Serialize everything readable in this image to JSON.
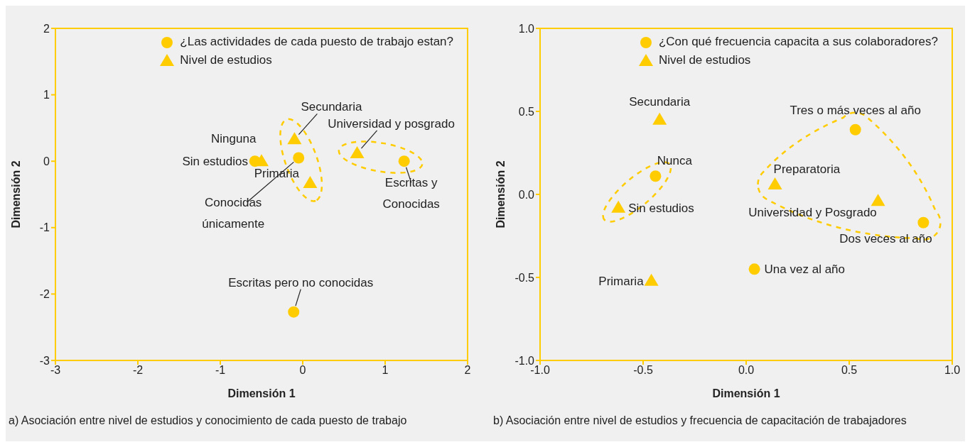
{
  "chart_data": [
    {
      "type": "scatter",
      "xlabel": "Dimensión 1",
      "ylabel": "Dimensión 2",
      "xlim": [
        -3,
        2
      ],
      "ylim": [
        -3,
        2
      ],
      "xticks": [
        -3,
        -2,
        -1,
        0,
        1,
        2
      ],
      "yticks": [
        -3,
        -2,
        -1,
        0,
        1,
        2
      ],
      "grid": false,
      "legend": "top right",
      "series": [
        {
          "name": "¿Las actividades de cada puesto de trabajo estan?",
          "color": "#ffcc00",
          "marker": "circle",
          "x": [
            -0.58,
            -0.05,
            1.23,
            -0.11
          ],
          "values": [
            0.0,
            0.05,
            0.0,
            -2.27
          ]
        },
        {
          "name": "Nivel de estudios",
          "color": "#ffcc00",
          "marker": "triangle",
          "x": [
            -0.5,
            -0.1,
            0.09,
            0.66
          ],
          "values": [
            0.0,
            0.33,
            -0.33,
            0.12
          ]
        }
      ],
      "annotations": [
        {
          "text": "Ninguna",
          "x": -0.58,
          "y": 0.0
        },
        {
          "text": "Sin estudios",
          "x": -0.5,
          "y": 0.0
        },
        {
          "text": "Secundaria",
          "x": -0.1,
          "y": 0.33
        },
        {
          "text": "Primaria",
          "x": 0.09,
          "y": -0.33
        },
        {
          "text": "Universidad y posgrado",
          "x": 0.66,
          "y": 0.12
        },
        {
          "text": "Conocidas\núnicamente",
          "x": -0.05,
          "y": 0.05
        },
        {
          "text": "Escritas y\nConocidas",
          "x": 1.23,
          "y": 0.0
        },
        {
          "text": "Escritas pero no conocidas",
          "x": -0.11,
          "y": -2.27
        },
        "a) Asociación entre nivel de estudios y conocimiento de cada puesto de trabajo"
      ]
    },
    {
      "type": "scatter",
      "xlabel": "Dimensión 1",
      "ylabel": "Dimensión 2",
      "xlim": [
        -1,
        1
      ],
      "ylim": [
        -1,
        1
      ],
      "xticks": [
        {
          "value": -1,
          "label": "-1.0"
        },
        {
          "value": -0.5,
          "label": "-0.5"
        },
        {
          "value": 0,
          "label": "0.0"
        },
        {
          "value": 0.5,
          "label": "0.5"
        },
        {
          "value": 1,
          "label": "1.0"
        }
      ],
      "yticks": [
        {
          "value": -1,
          "label": "-1.0"
        },
        {
          "value": -0.5,
          "label": "-0.5"
        },
        {
          "value": 0,
          "label": "0.0"
        },
        {
          "value": 0.5,
          "label": "0.5"
        },
        {
          "value": 1,
          "label": "1.0"
        }
      ],
      "grid": false,
      "legend": "top right",
      "series": [
        {
          "name": "¿Con qué frecuencia capacita a sus colaboradores?",
          "color": "#ffcc00",
          "marker": "circle",
          "x": [
            -0.44,
            0.53,
            0.86,
            0.04
          ],
          "values": [
            0.11,
            0.39,
            -0.17,
            -0.45
          ]
        },
        {
          "name": "Nivel de estudios",
          "color": "#ffcc00",
          "marker": "triangle",
          "x": [
            -0.42,
            -0.62,
            0.14,
            0.64,
            -0.46
          ],
          "values": [
            0.45,
            -0.08,
            0.06,
            -0.04,
            -0.52
          ]
        }
      ],
      "annotations": [
        {
          "text": "Secundaria",
          "x": -0.42,
          "y": 0.45
        },
        {
          "text": "Nunca",
          "x": -0.44,
          "y": 0.11
        },
        {
          "text": "Sin estudios",
          "x": -0.62,
          "y": -0.08
        },
        {
          "text": "Primaria",
          "x": -0.46,
          "y": -0.52
        },
        {
          "text": "Preparatoria",
          "x": 0.14,
          "y": 0.06
        },
        {
          "text": "Universidad y Posgrado",
          "x": 0.64,
          "y": -0.04
        },
        {
          "text": "Tres o más veces al año",
          "x": 0.53,
          "y": 0.39
        },
        {
          "text": "Dos veces al año",
          "x": 0.86,
          "y": -0.17
        },
        {
          "text": "Una vez al año",
          "x": 0.04,
          "y": -0.45
        },
        "b) Asociación entre nivel de estudios y frecuencia de capacitación de trabajadores"
      ]
    }
  ]
}
